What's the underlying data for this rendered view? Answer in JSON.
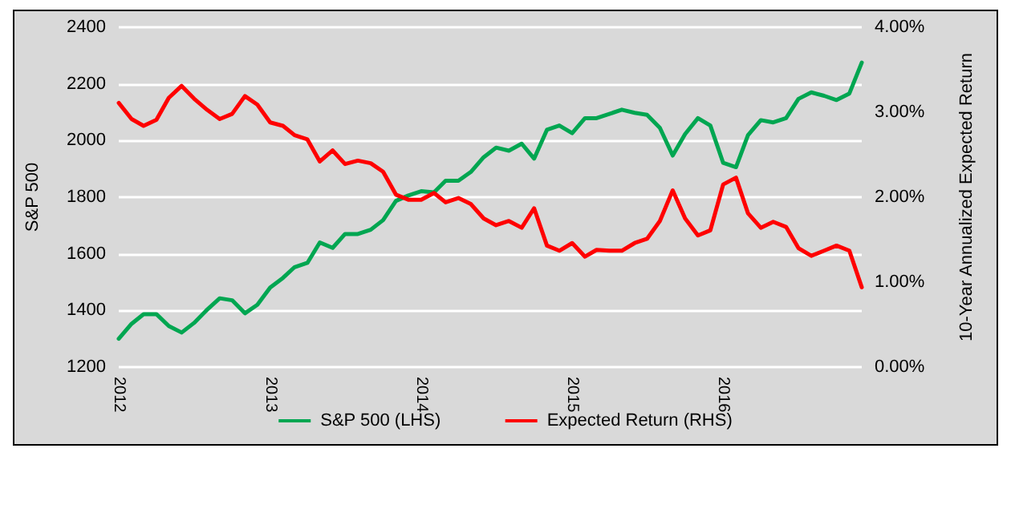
{
  "chart_data": {
    "type": "line",
    "ylabel": "S&P 500",
    "y2label": "10-Year Annualized Expected Return",
    "x": [
      "2012-01",
      "2012-02",
      "2012-03",
      "2012-04",
      "2012-05",
      "2012-06",
      "2012-07",
      "2012-08",
      "2012-09",
      "2012-10",
      "2012-11",
      "2012-12",
      "2013-01",
      "2013-02",
      "2013-03",
      "2013-04",
      "2013-05",
      "2013-06",
      "2013-07",
      "2013-08",
      "2013-09",
      "2013-10",
      "2013-11",
      "2013-12",
      "2014-01",
      "2014-02",
      "2014-03",
      "2014-04",
      "2014-05",
      "2014-06",
      "2014-07",
      "2014-08",
      "2014-09",
      "2014-10",
      "2014-11",
      "2014-12",
      "2015-01",
      "2015-02",
      "2015-03",
      "2015-04",
      "2015-05",
      "2015-06",
      "2015-07",
      "2015-08",
      "2015-09",
      "2015-10",
      "2015-11",
      "2015-12",
      "2016-01",
      "2016-02",
      "2016-03",
      "2016-04",
      "2016-05",
      "2016-06",
      "2016-07",
      "2016-08",
      "2016-09",
      "2016-10",
      "2016-11",
      "2016-12"
    ],
    "series": [
      {
        "name": "S&P 500 (LHS)",
        "color": "#00a651",
        "values": [
          1300,
          1353,
          1387,
          1387,
          1345,
          1322,
          1356,
          1402,
          1443,
          1436,
          1390,
          1420,
          1481,
          1515,
          1553,
          1568,
          1640,
          1621,
          1670,
          1670,
          1685,
          1719,
          1787,
          1806,
          1821,
          1817,
          1858,
          1858,
          1889,
          1941,
          1975,
          1964,
          1989,
          1936,
          2038,
          2053,
          2026,
          2079,
          2079,
          2094,
          2109,
          2098,
          2091,
          2045,
          1947,
          2023,
          2079,
          2053,
          1921,
          1906,
          2019,
          2072,
          2064,
          2079,
          2147,
          2170,
          2158,
          2143,
          2166,
          2275
        ]
      },
      {
        "name": "Expected Return (RHS)",
        "color": "#ff0000",
        "axis": "y2",
        "values": [
          3.11,
          2.92,
          2.84,
          2.91,
          3.17,
          3.31,
          3.16,
          3.03,
          2.92,
          2.98,
          3.19,
          3.09,
          2.88,
          2.84,
          2.73,
          2.68,
          2.42,
          2.55,
          2.39,
          2.43,
          2.4,
          2.3,
          2.03,
          1.97,
          1.97,
          2.05,
          1.94,
          1.99,
          1.92,
          1.75,
          1.67,
          1.72,
          1.64,
          1.87,
          1.43,
          1.37,
          1.46,
          1.3,
          1.38,
          1.37,
          1.37,
          1.46,
          1.51,
          1.72,
          2.08,
          1.75,
          1.55,
          1.61,
          2.15,
          2.23,
          1.81,
          1.64,
          1.71,
          1.65,
          1.4,
          1.31,
          1.37,
          1.43,
          1.37,
          0.94
        ]
      }
    ],
    "xlim": [
      "2012-01",
      "2016-12"
    ],
    "xticks": [
      "2012",
      "2013",
      "2014",
      "2015",
      "2016"
    ],
    "ylim": [
      1200,
      2400
    ],
    "yticks": [
      1200,
      1400,
      1600,
      1800,
      2000,
      2200,
      2400
    ],
    "y2lim": [
      0,
      4
    ],
    "y2ticks": [
      {
        "value": 0,
        "label": "0.00%"
      },
      {
        "value": 1,
        "label": "1.00%"
      },
      {
        "value": 2,
        "label": "2.00%"
      },
      {
        "value": 3,
        "label": "3.00%"
      },
      {
        "value": 4,
        "label": "4.00%"
      }
    ],
    "grid": "y",
    "legend": "bottom",
    "marker": "none",
    "line_style": "solid"
  }
}
